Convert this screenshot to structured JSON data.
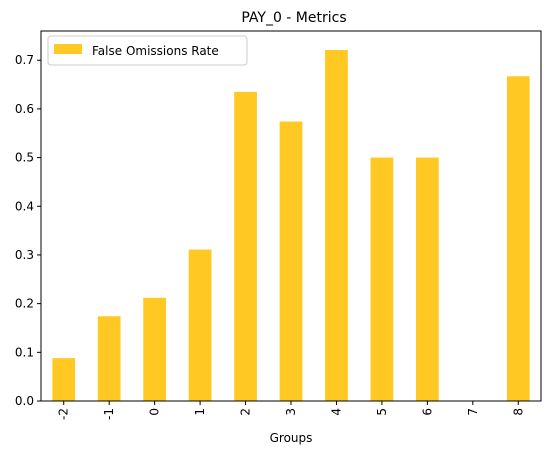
{
  "chart_data": {
    "type": "bar",
    "title": "PAY_0 - Metrics",
    "xlabel": "Groups",
    "ylabel": "",
    "categories": [
      "-2",
      "-1",
      "0",
      "1",
      "2",
      "3",
      "4",
      "5",
      "6",
      "7",
      "8"
    ],
    "series": [
      {
        "name": "False Omissions Rate",
        "values": [
          0.088,
          0.174,
          0.212,
          0.311,
          0.635,
          0.574,
          0.721,
          0.5,
          0.5,
          0.0,
          0.667
        ]
      }
    ],
    "ylim": [
      0,
      0.76
    ],
    "yticks": [
      "0.0",
      "0.1",
      "0.2",
      "0.3",
      "0.4",
      "0.5",
      "0.6",
      "0.7"
    ],
    "grid": false,
    "legend_position": "top-left",
    "bar_color": "#FFC823"
  }
}
